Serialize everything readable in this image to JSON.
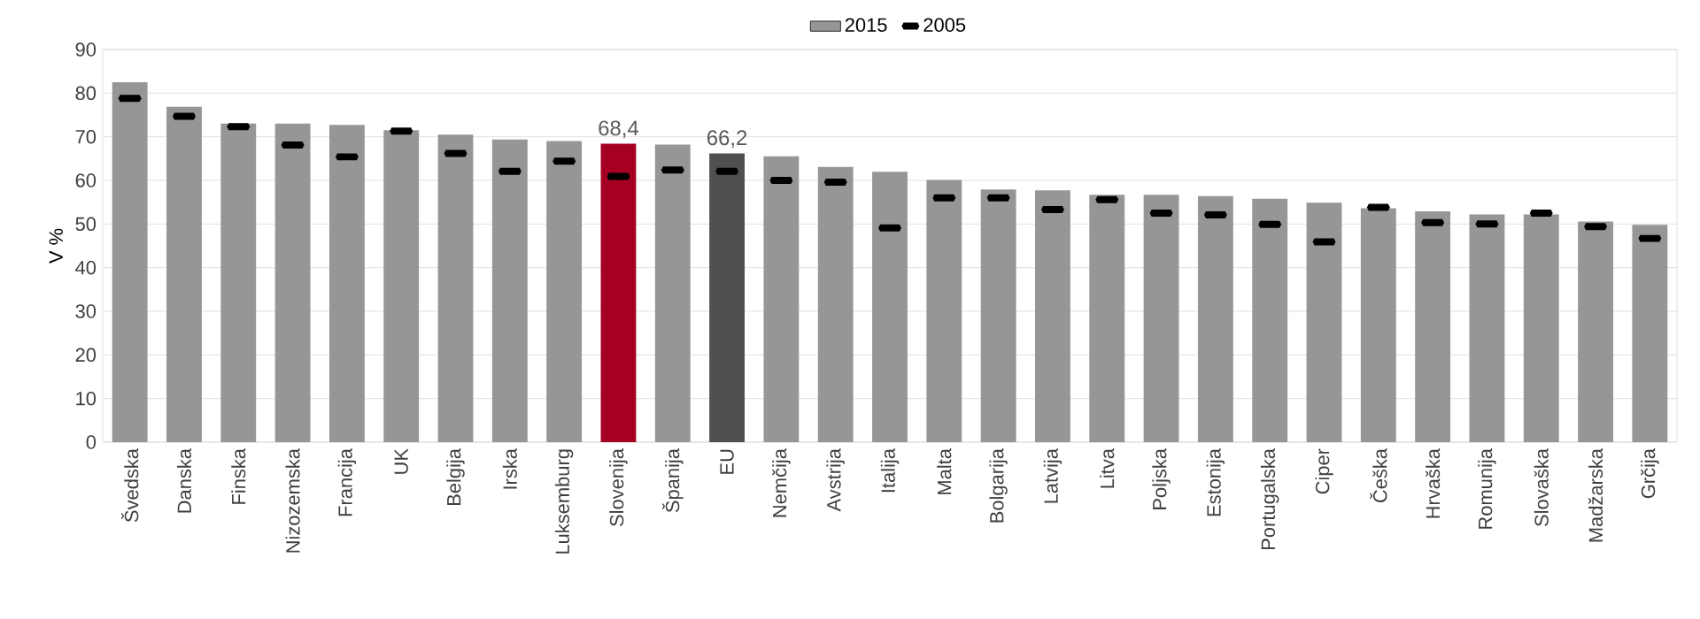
{
  "chart_data": {
    "type": "bar",
    "ylabel": "V %",
    "categories": [
      "Švedska",
      "Danska",
      "Finska",
      "Nizozemska",
      "Francija",
      "UK",
      "Belgija",
      "Irska",
      "Luksemburg",
      "Slovenija",
      "Španija",
      "EU",
      "Nemčija",
      "Avstrija",
      "Italija",
      "Malta",
      "Bolgarija",
      "Latvija",
      "Litva",
      "Poljska",
      "Estonija",
      "Portugalska",
      "Ciper",
      "Češka",
      "Hrvaška",
      "Romunija",
      "Slovaška",
      "Madžarska",
      "Grčija"
    ],
    "series": [
      {
        "name": "2015",
        "color": "#969696",
        "colors": [
          "#969696",
          "#969696",
          "#969696",
          "#969696",
          "#969696",
          "#969696",
          "#969696",
          "#969696",
          "#969696",
          "#a50021",
          "#969696",
          "#505050",
          "#969696",
          "#969696",
          "#969696",
          "#969696",
          "#969696",
          "#969696",
          "#969696",
          "#969696",
          "#969696",
          "#969696",
          "#969696",
          "#969696",
          "#969696",
          "#969696",
          "#969696",
          "#969696",
          "#969696"
        ],
        "values": [
          82.5,
          76.9,
          73.0,
          73.0,
          72.7,
          71.5,
          70.5,
          69.4,
          69.0,
          68.4,
          68.2,
          66.2,
          65.5,
          63.1,
          62.0,
          60.1,
          57.9,
          57.7,
          56.7,
          56.7,
          56.4,
          55.8,
          54.9,
          53.6,
          52.9,
          52.2,
          52.2,
          50.6,
          49.8
        ],
        "value_labels": [
          null,
          null,
          null,
          null,
          null,
          null,
          null,
          null,
          null,
          "68,4",
          null,
          "66,2",
          null,
          null,
          null,
          null,
          null,
          null,
          null,
          null,
          null,
          null,
          null,
          null,
          null,
          null,
          null,
          null,
          null
        ]
      },
      {
        "name": "2005",
        "type": "scatter",
        "color": "#000000",
        "values": [
          78.8,
          74.7,
          72.3,
          68.1,
          65.4,
          71.3,
          66.2,
          62.1,
          64.4,
          60.9,
          62.4,
          62.1,
          60.0,
          59.6,
          49.1,
          56.0,
          56.0,
          53.3,
          55.6,
          52.5,
          52.1,
          49.9,
          45.9,
          53.8,
          50.3,
          50.0,
          52.5,
          49.4,
          46.7
        ]
      }
    ],
    "ylim": [
      0,
      90
    ],
    "yticks": [
      0,
      10,
      20,
      30,
      40,
      50,
      60,
      70,
      80,
      90
    ],
    "grid": "y",
    "legend": "top"
  }
}
